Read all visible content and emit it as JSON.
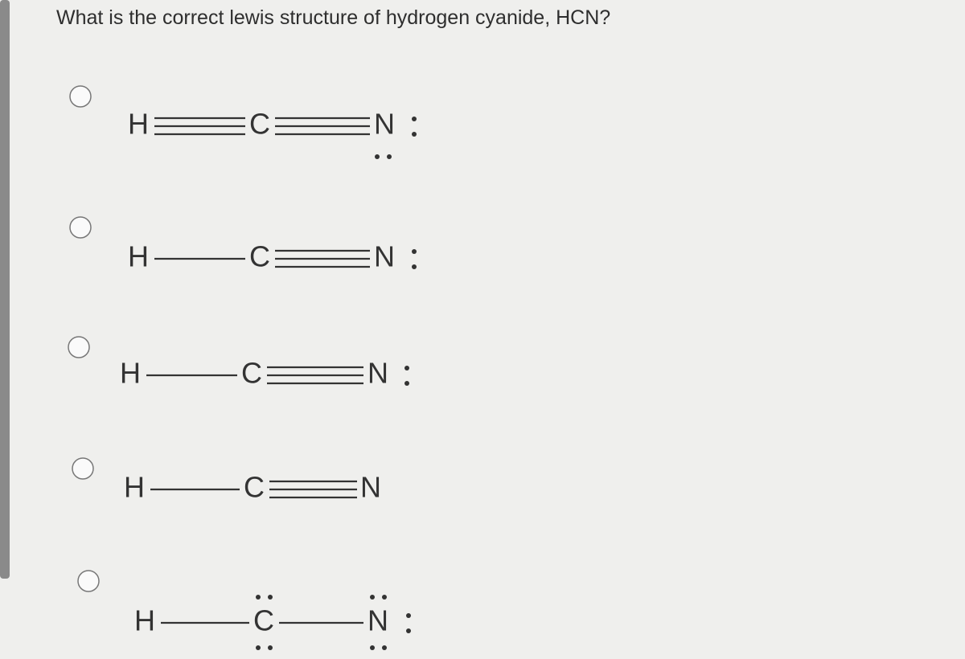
{
  "question": "What is the correct lewis structure of hydrogen cyanide, HCN?",
  "options": [
    {
      "atoms": [
        "H",
        "C",
        "N"
      ]
    },
    {
      "atoms": [
        "H",
        "C",
        "N"
      ]
    },
    {
      "atoms": [
        "H",
        "C",
        "N"
      ]
    },
    {
      "atoms": [
        "H",
        "C",
        "N"
      ]
    },
    {
      "atoms": [
        "H",
        "C",
        "N"
      ]
    }
  ]
}
